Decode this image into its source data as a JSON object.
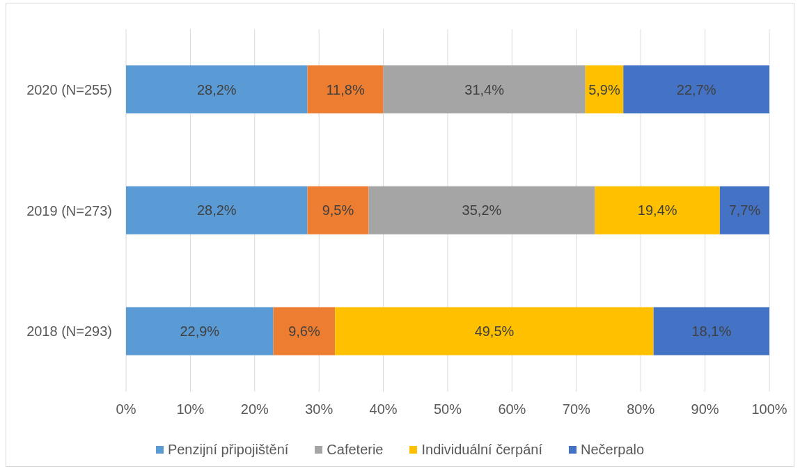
{
  "chart_data": {
    "type": "bar",
    "orientation": "horizontal",
    "stacked": true,
    "categories": [
      "2020 (N=255)",
      "2019 (N=273)",
      "2018 (N=293)"
    ],
    "series": [
      {
        "name": "Penzijní připojištění",
        "color": "#5b9bd5",
        "values": [
          28.2,
          28.2,
          22.9
        ],
        "value_labels": [
          "28,2%",
          "28,2%",
          "22,9%"
        ]
      },
      {
        "color": "#ed7d31",
        "values": [
          11.8,
          9.5,
          9.6
        ],
        "value_labels": [
          "11,8%",
          "9,5%",
          "9,6%"
        ]
      },
      {
        "name": "Cafeterie",
        "color": "#a5a5a5",
        "values": [
          31.4,
          35.2,
          null
        ],
        "value_labels": [
          "31,4%",
          "35,2%",
          null
        ]
      },
      {
        "name": "Individuální čerpání",
        "color": "#ffc000",
        "values": [
          5.9,
          19.4,
          49.5
        ],
        "value_labels": [
          "5,9%",
          "19,4%",
          "49,5%"
        ]
      },
      {
        "name": "Nečerpalo",
        "color": "#4472c4",
        "values": [
          22.7,
          7.7,
          18.1
        ],
        "value_labels": [
          "22,7%",
          "7,7%",
          "18,1%"
        ]
      }
    ],
    "xlim": [
      0,
      100
    ],
    "xticks": [
      {
        "value": 0,
        "label": "0%"
      },
      {
        "value": 10,
        "label": "10%"
      },
      {
        "value": 20,
        "label": "20%"
      },
      {
        "value": 30,
        "label": "30%"
      },
      {
        "value": 40,
        "label": "40%"
      },
      {
        "value": 50,
        "label": "50%"
      },
      {
        "value": 60,
        "label": "60%"
      },
      {
        "value": 70,
        "label": "70%"
      },
      {
        "value": 80,
        "label": "80%"
      },
      {
        "value": 90,
        "label": "90%"
      },
      {
        "value": 100,
        "label": "100%"
      }
    ],
    "grid": "x",
    "legend": "bottom"
  }
}
